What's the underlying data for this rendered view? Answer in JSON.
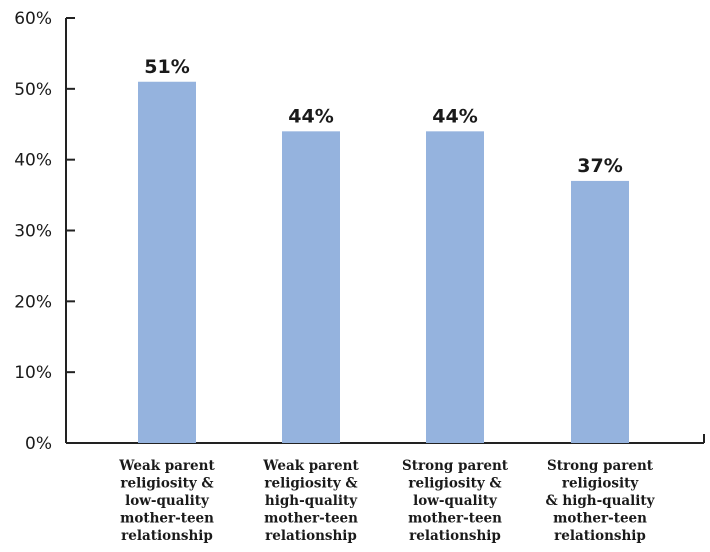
{
  "chart_data": {
    "type": "bar",
    "title": "",
    "xlabel": "",
    "ylabel": "",
    "ylim": [
      0,
      60
    ],
    "yticks": [
      "0%",
      "10%",
      "20%",
      "30%",
      "40%",
      "50%",
      "60%"
    ],
    "grid": false,
    "bar_color": "#95b3de",
    "categories": [
      [
        "Weak parent",
        "religiosity &",
        "low-quality",
        "mother-teen",
        "relationship"
      ],
      [
        "Weak parent",
        "religiosity &",
        "high-quality",
        "mother-teen",
        "relationship"
      ],
      [
        "Strong parent",
        "religiosity &",
        "low-quality",
        "mother-teen",
        "relationship"
      ],
      [
        "Strong parent",
        "religiosity",
        "& high-quality",
        "mother-teen",
        "relationship"
      ]
    ],
    "values": [
      51,
      44,
      44,
      37
    ],
    "value_labels": [
      "51%",
      "44%",
      "44%",
      "37%"
    ]
  }
}
